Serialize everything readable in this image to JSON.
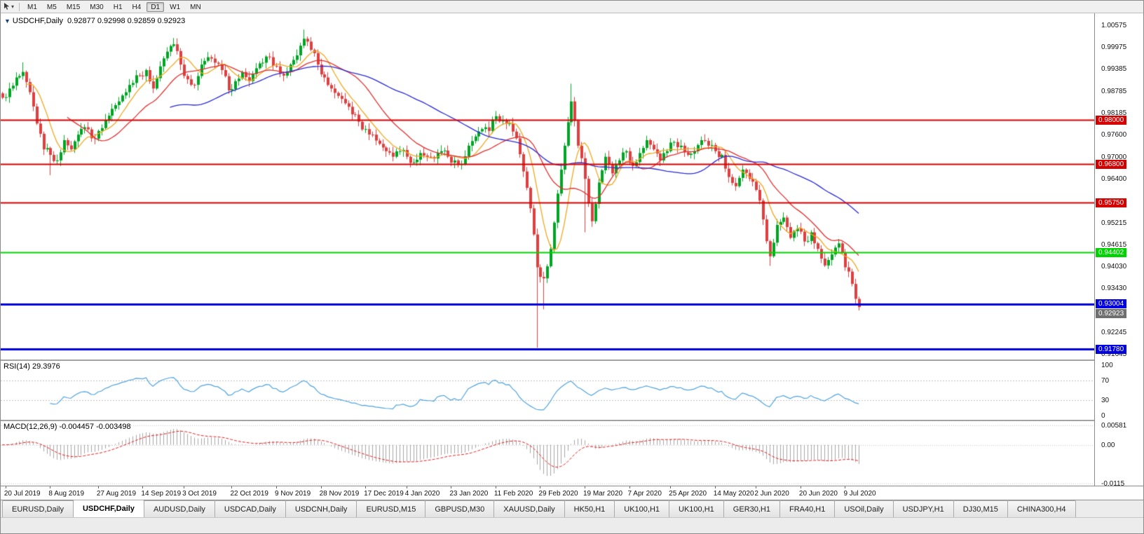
{
  "toolbar": {
    "timeframes": [
      "M1",
      "M5",
      "M15",
      "M30",
      "H1",
      "H4",
      "D1",
      "W1",
      "MN"
    ],
    "active_timeframe": "D1"
  },
  "chart": {
    "title_symbol": "USDCHF,Daily",
    "title_ohlc": "0.92877 0.92998 0.92859 0.92923"
  },
  "chart_data": {
    "type": "candlestick",
    "symbol": "USDCHF",
    "timeframe": "Daily",
    "title": "USDCHF,Daily 0.92877 0.92998 0.92859 0.92923",
    "candle_up_color": "#00A524",
    "candle_down_color": "#DE3F3F",
    "y_axis": {
      "range": [
        0.915,
        1.0089
      ],
      "ticks": [
        {
          "text": "1.00575",
          "v": 1.00575
        },
        {
          "text": "0.99975",
          "v": 0.99975
        },
        {
          "text": "0.99385",
          "v": 0.99385
        },
        {
          "text": "0.98785",
          "v": 0.98785
        },
        {
          "text": "0.98185",
          "v": 0.98185
        },
        {
          "text": "0.97600",
          "v": 0.976
        },
        {
          "text": "0.97000",
          "v": 0.97
        },
        {
          "text": "0.96400",
          "v": 0.964
        },
        {
          "text": "0.95215",
          "v": 0.95215
        },
        {
          "text": "0.94615",
          "v": 0.94615
        },
        {
          "text": "0.94030",
          "v": 0.9403
        },
        {
          "text": "0.93430",
          "v": 0.9343
        },
        {
          "text": "0.92245",
          "v": 0.92245
        },
        {
          "text": "0.91645",
          "v": 0.91645
        }
      ]
    },
    "x_labels": [
      {
        "text": "20 Jul 2019",
        "i": 1
      },
      {
        "text": "8 Aug 2019",
        "i": 14
      },
      {
        "text": "27 Aug 2019",
        "i": 28
      },
      {
        "text": "14 Sep 2019",
        "i": 41
      },
      {
        "text": "3 Oct 2019",
        "i": 53
      },
      {
        "text": "22 Oct 2019",
        "i": 67
      },
      {
        "text": "9 Nov 2019",
        "i": 80
      },
      {
        "text": "28 Nov 2019",
        "i": 93
      },
      {
        "text": "17 Dec 2019",
        "i": 106
      },
      {
        "text": "4 Jan 2020",
        "i": 118
      },
      {
        "text": "23 Jan 2020",
        "i": 131
      },
      {
        "text": "11 Feb 2020",
        "i": 144
      },
      {
        "text": "29 Feb 2020",
        "i": 157
      },
      {
        "text": "19 Mar 2020",
        "i": 170
      },
      {
        "text": "7 Apr 2020",
        "i": 183
      },
      {
        "text": "25 Apr 2020",
        "i": 195
      },
      {
        "text": "14 May 2020",
        "i": 208
      },
      {
        "text": "2 Jun 2020",
        "i": 220
      },
      {
        "text": "20 Jun 2020",
        "i": 233
      },
      {
        "text": "9 Jul 2020",
        "i": 246
      }
    ],
    "closes_2day": [
      0.986,
      0.9885,
      0.9915,
      0.993,
      0.9875,
      0.979,
      0.972,
      0.9705,
      0.969,
      0.9745,
      0.972,
      0.976,
      0.978,
      0.975,
      0.977,
      0.98,
      0.983,
      0.985,
      0.9875,
      0.99,
      0.992,
      0.9935,
      0.9885,
      0.9945,
      0.9985,
      1.0005,
      0.995,
      0.991,
      0.9895,
      0.995,
      0.997,
      0.9955,
      0.9935,
      0.988,
      0.9905,
      0.993,
      0.9905,
      0.994,
      0.9955,
      0.997,
      0.9945,
      0.992,
      0.995,
      0.9975,
      1.002,
      0.999,
      0.995,
      0.9915,
      0.9885,
      0.9865,
      0.9845,
      0.9815,
      0.9795,
      0.9775,
      0.976,
      0.9735,
      0.9715,
      0.97,
      0.9715,
      0.97,
      0.9685,
      0.971,
      0.97,
      0.9695,
      0.9715,
      0.97,
      0.969,
      0.968,
      0.973,
      0.9755,
      0.9775,
      0.977,
      0.981,
      0.98,
      0.979,
      0.975,
      0.966,
      0.956,
      0.94,
      0.937,
      0.945,
      0.96,
      0.973,
      0.985,
      0.973,
      0.964,
      0.9525,
      0.963,
      0.97,
      0.9655,
      0.969,
      0.9715,
      0.9675,
      0.971,
      0.9745,
      0.972,
      0.969,
      0.9715,
      0.974,
      0.973,
      0.9705,
      0.9715,
      0.9745,
      0.973,
      0.9715,
      0.9705,
      0.9645,
      0.962,
      0.9665,
      0.964,
      0.961,
      0.953,
      0.943,
      0.9515,
      0.9535,
      0.948,
      0.9505,
      0.947,
      0.9495,
      0.945,
      0.9405,
      0.9435,
      0.9465,
      0.94,
      0.9355,
      0.92923
    ],
    "wick_overrides": {
      "6": {
        "high": 0.9956
      },
      "14": {
        "low": 0.965
      },
      "50": {
        "high": 1.0022
      },
      "88": {
        "high": 1.0045
      },
      "156": {
        "low": 0.9182
      },
      "158": {
        "low": 0.9286
      },
      "166": {
        "high": 0.9898
      },
      "170": {
        "low": 0.9495
      },
      "224": {
        "low": 0.9404
      },
      "250": {
        "low": 0.9283
      }
    },
    "moving_averages": [
      {
        "period": 8,
        "color": "#EFA720"
      },
      {
        "period": 20,
        "color": "#E03030"
      },
      {
        "period": 50,
        "color": "#2A2AD4"
      }
    ],
    "price_lines": [
      {
        "price": 0.98,
        "label": "0.98000",
        "color": "#D40000",
        "width": 2
      },
      {
        "price": 0.968,
        "label": "0.96800",
        "color": "#D40000",
        "width": 2
      },
      {
        "price": 0.9575,
        "label": "0.95750",
        "color": "#D40000",
        "width": 2
      },
      {
        "price": 0.94402,
        "label": "0.94402",
        "color": "#00D400",
        "width": 2
      },
      {
        "price": 0.93004,
        "label": "0.93004",
        "color": "#0000E0",
        "width": 3
      },
      {
        "price": 0.9178,
        "label": "0.91780",
        "color": "#0000E0",
        "width": 3
      }
    ],
    "current_price": {
      "label": "0.92923",
      "price": 0.92923,
      "color": "#6f6f6f"
    },
    "rsi": {
      "label": "RSI(14) 29.3976",
      "period": 14,
      "current_value": 29.3976,
      "line_color": "#4FA3DC",
      "level_color": "#C4C4C4",
      "levels": [
        {
          "text": "100",
          "v": 100
        },
        {
          "text": "70",
          "v": 70
        },
        {
          "text": "30",
          "v": 30
        },
        {
          "text": "0",
          "v": 0
        }
      ],
      "dashed_levels": [
        70,
        30
      ],
      "range": [
        -8,
        108
      ]
    },
    "macd": {
      "label": "MACD(12,26,9) -0.004457 -0.003498",
      "fast": 12,
      "slow": 26,
      "signal": 9,
      "main_value": -0.004457,
      "signal_value": -0.003498,
      "hist_color": "#A6A6A6",
      "signal_color": "#E02020",
      "level_color": "#C4C4C4",
      "axis_labels": [
        {
          "text": "0.00581",
          "v": 0.00581
        },
        {
          "text": "0.00",
          "v": 0.0
        },
        {
          "text": "-0.0115",
          "v": -0.0115
        }
      ],
      "range": [
        -0.01203,
        0.00697
      ]
    }
  },
  "tabs": {
    "active_index": 1,
    "items": [
      "EURUSD,Daily",
      "USDCHF,Daily",
      "AUDUSD,Daily",
      "USDCAD,Daily",
      "USDCNH,Daily",
      "EURUSD,M15",
      "GBPUSD,M30",
      "XAUUSD,Daily",
      "HK50,H1",
      "UK100,H1",
      "UK100,H1",
      "GER30,H1",
      "FRA40,H1",
      "USOil,Daily",
      "USDJPY,H1",
      "DJ30,M15",
      "CHINA300,H4"
    ]
  }
}
